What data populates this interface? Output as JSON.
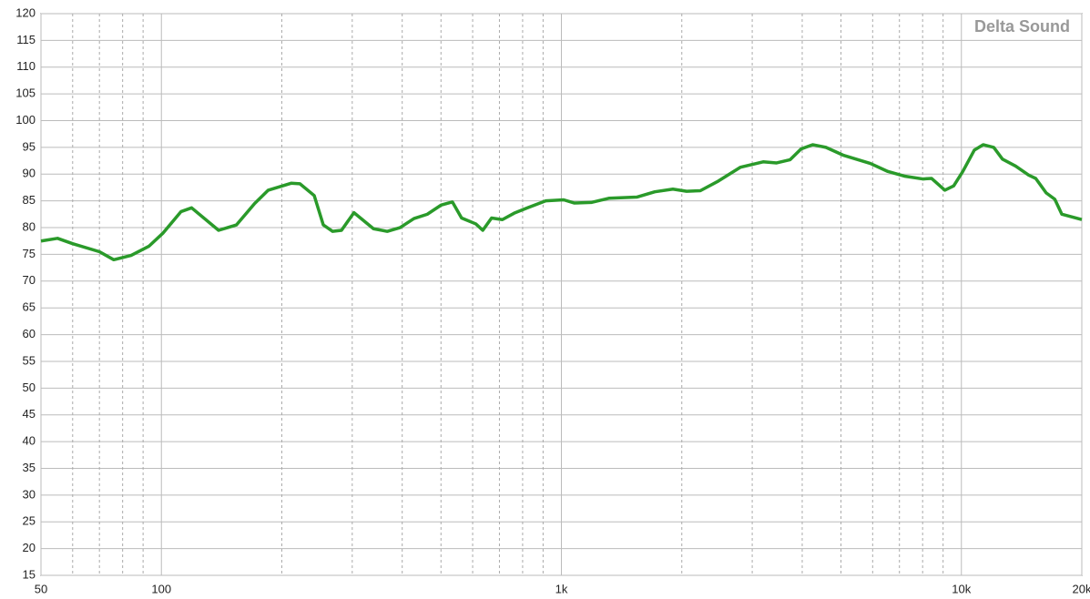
{
  "chart_data": {
    "type": "line",
    "watermark": "Delta Sound",
    "xscale": "log",
    "xlim": [
      50,
      20000
    ],
    "xticks": [
      50,
      100,
      {
        "value": 1000,
        "label": "1k"
      },
      {
        "value": 10000,
        "label": "10k"
      },
      {
        "value": 20000,
        "label": "20k"
      }
    ],
    "xminor": [
      60,
      70,
      80,
      90,
      200,
      300,
      400,
      500,
      600,
      700,
      800,
      900,
      2000,
      3000,
      4000,
      5000,
      6000,
      7000,
      8000,
      9000
    ],
    "ylim": [
      15,
      120
    ],
    "yticks": [
      15,
      20,
      25,
      30,
      35,
      40,
      45,
      50,
      55,
      60,
      65,
      70,
      75,
      80,
      85,
      90,
      95,
      100,
      105,
      110,
      115,
      120
    ],
    "grid": true,
    "x": [
      50,
      55,
      60,
      70,
      76,
      84,
      93,
      101,
      112,
      119,
      139,
      154,
      171,
      185,
      211,
      222,
      241,
      254,
      268,
      282,
      303,
      339,
      367,
      395,
      428,
      462,
      500,
      534,
      563,
      611,
      636,
      669,
      712,
      762,
      823,
      914,
      1013,
      1078,
      1187,
      1318,
      1543,
      1712,
      1900,
      2056,
      2225,
      2468,
      2805,
      3194,
      3452,
      3732,
      3974,
      4248,
      4585,
      5081,
      5922,
      6547,
      7236,
      8001,
      8420,
      9091,
      9567,
      10082,
      10775,
      11334,
      12048,
      12668,
      13664,
      14740,
      15340,
      16290,
      17120,
      17830,
      20000
    ],
    "series": [
      {
        "color": "#2a9a2a",
        "values": [
          77.5,
          78,
          77,
          75.5,
          74,
          74.8,
          76.5,
          79,
          83,
          83.7,
          79.5,
          80.5,
          84.5,
          87,
          88.3,
          88.2,
          86,
          80.5,
          79.3,
          79.5,
          82.8,
          79.8,
          79.3,
          80,
          81.7,
          82.5,
          84.2,
          84.8,
          81.8,
          80.7,
          79.5,
          81.8,
          81.5,
          82.7,
          83.7,
          85,
          85.2,
          84.6,
          84.7,
          85.5,
          85.7,
          86.7,
          87.2,
          86.8,
          86.9,
          88.7,
          91.3,
          92.3,
          92.1,
          92.7,
          94.7,
          95.5,
          95,
          93.5,
          92,
          90.5,
          89.6,
          89.1,
          89.2,
          87,
          87.8,
          90.5,
          94.5,
          95.5,
          95,
          92.8,
          91.5,
          89.8,
          89.2,
          86.5,
          85.3,
          82.5,
          81.5
        ]
      }
    ]
  }
}
